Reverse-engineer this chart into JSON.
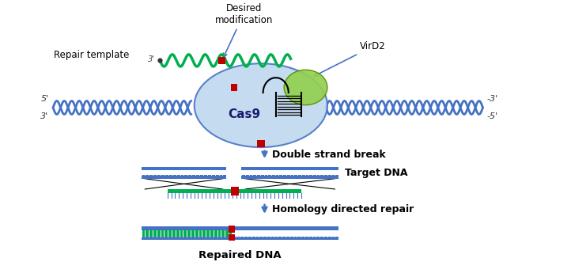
{
  "bg_color": "#ffffff",
  "dna_blue": "#4472C4",
  "dna_white": "#ffffff",
  "dna_green": "#00B050",
  "cas9_fill": "#BDD7EE",
  "cas9_border": "#4472C4",
  "vird2_fill": "#92D050",
  "arrow_color": "#4472C4",
  "red_marker": "#C00000",
  "dark_gray": "#404040",
  "label_color": "#000000",
  "title": "",
  "label_desired": "Desired\nmodification",
  "label_repair": "Repair template",
  "label_vird2": "VirD2",
  "label_cas9": "Cas9",
  "label_dsb": "Double strand break",
  "label_target": "Target DNA",
  "label_hdr": "Homology directed repair",
  "label_repaired": "Repaired DNA",
  "label_5left": "5'",
  "label_3left": "3'",
  "label_3right": "-3'",
  "label_5right": "-5'"
}
